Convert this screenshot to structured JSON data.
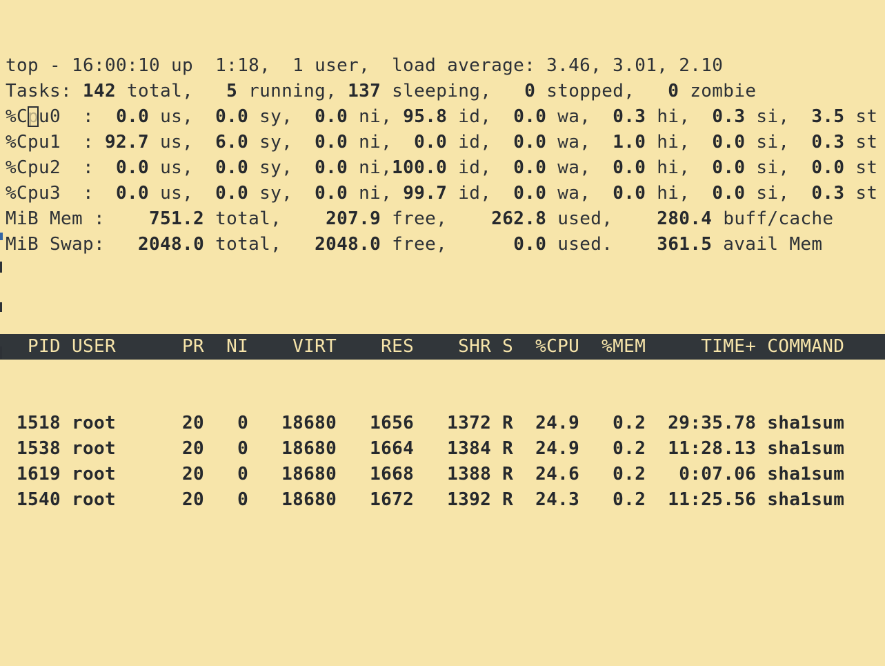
{
  "colors": {
    "background": "#f7e5aa",
    "foreground": "#2d3136",
    "table_header_bg": "#31363a",
    "table_header_fg": "#f7e5aa",
    "accent_blue": "#3465a4"
  },
  "summary": {
    "lines": [
      {
        "name": "uptime-line",
        "segments": [
          {
            "text": "top - 16:00:10 up  1:18,  1 user,  load average: 3.46, 3.01, 2.10",
            "bold": false
          }
        ]
      },
      {
        "name": "tasks-line",
        "segments": [
          {
            "text": "Tasks: ",
            "bold": false
          },
          {
            "text": "142",
            "bold": true
          },
          {
            "text": " total,   ",
            "bold": false
          },
          {
            "text": "5",
            "bold": true
          },
          {
            "text": " running, ",
            "bold": false
          },
          {
            "text": "137",
            "bold": true
          },
          {
            "text": " sleeping,   ",
            "bold": false
          },
          {
            "text": "0",
            "bold": true
          },
          {
            "text": " stopped,   ",
            "bold": false
          },
          {
            "text": "0",
            "bold": true
          },
          {
            "text": " zombie",
            "bold": false
          }
        ]
      },
      {
        "name": "cpu0-line",
        "segments": [
          {
            "text": "%C",
            "bold": false
          },
          {
            "text": "p",
            "bold": false,
            "cursor": true
          },
          {
            "text": "u0  :  ",
            "bold": false
          },
          {
            "text": "0.0",
            "bold": true
          },
          {
            "text": " us,  ",
            "bold": false
          },
          {
            "text": "0.0",
            "bold": true
          },
          {
            "text": " sy,  ",
            "bold": false
          },
          {
            "text": "0.0",
            "bold": true
          },
          {
            "text": " ni, ",
            "bold": false
          },
          {
            "text": "95.8",
            "bold": true
          },
          {
            "text": " id,  ",
            "bold": false
          },
          {
            "text": "0.0",
            "bold": true
          },
          {
            "text": " wa,  ",
            "bold": false
          },
          {
            "text": "0.3",
            "bold": true
          },
          {
            "text": " hi,  ",
            "bold": false
          },
          {
            "text": "0.3",
            "bold": true
          },
          {
            "text": " si,  ",
            "bold": false
          },
          {
            "text": "3.5",
            "bold": true
          },
          {
            "text": " st",
            "bold": false
          }
        ]
      },
      {
        "name": "cpu1-line",
        "segments": [
          {
            "text": "%Cpu1  : ",
            "bold": false
          },
          {
            "text": "92.7",
            "bold": true
          },
          {
            "text": " us,  ",
            "bold": false
          },
          {
            "text": "6.0",
            "bold": true
          },
          {
            "text": " sy,  ",
            "bold": false
          },
          {
            "text": "0.0",
            "bold": true
          },
          {
            "text": " ni,  ",
            "bold": false
          },
          {
            "text": "0.0",
            "bold": true
          },
          {
            "text": " id,  ",
            "bold": false
          },
          {
            "text": "0.0",
            "bold": true
          },
          {
            "text": " wa,  ",
            "bold": false
          },
          {
            "text": "1.0",
            "bold": true
          },
          {
            "text": " hi,  ",
            "bold": false
          },
          {
            "text": "0.0",
            "bold": true
          },
          {
            "text": " si,  ",
            "bold": false
          },
          {
            "text": "0.3",
            "bold": true
          },
          {
            "text": " st",
            "bold": false
          }
        ]
      },
      {
        "name": "cpu2-line",
        "segments": [
          {
            "text": "%Cpu2  :  ",
            "bold": false
          },
          {
            "text": "0.0",
            "bold": true
          },
          {
            "text": " us,  ",
            "bold": false
          },
          {
            "text": "0.0",
            "bold": true
          },
          {
            "text": " sy,  ",
            "bold": false
          },
          {
            "text": "0.0",
            "bold": true
          },
          {
            "text": " ni,",
            "bold": false
          },
          {
            "text": "100.0",
            "bold": true
          },
          {
            "text": " id,  ",
            "bold": false
          },
          {
            "text": "0.0",
            "bold": true
          },
          {
            "text": " wa,  ",
            "bold": false
          },
          {
            "text": "0.0",
            "bold": true
          },
          {
            "text": " hi,  ",
            "bold": false
          },
          {
            "text": "0.0",
            "bold": true
          },
          {
            "text": " si,  ",
            "bold": false
          },
          {
            "text": "0.0",
            "bold": true
          },
          {
            "text": " st",
            "bold": false
          }
        ]
      },
      {
        "name": "cpu3-line",
        "segments": [
          {
            "text": "%Cpu3  :  ",
            "bold": false
          },
          {
            "text": "0.0",
            "bold": true
          },
          {
            "text": " us,  ",
            "bold": false
          },
          {
            "text": "0.0",
            "bold": true
          },
          {
            "text": " sy,  ",
            "bold": false
          },
          {
            "text": "0.0",
            "bold": true
          },
          {
            "text": " ni, ",
            "bold": false
          },
          {
            "text": "99.7",
            "bold": true
          },
          {
            "text": " id,  ",
            "bold": false
          },
          {
            "text": "0.0",
            "bold": true
          },
          {
            "text": " wa,  ",
            "bold": false
          },
          {
            "text": "0.0",
            "bold": true
          },
          {
            "text": " hi,  ",
            "bold": false
          },
          {
            "text": "0.0",
            "bold": true
          },
          {
            "text": " si,  ",
            "bold": false
          },
          {
            "text": "0.3",
            "bold": true
          },
          {
            "text": " st",
            "bold": false
          }
        ]
      },
      {
        "name": "mem-line",
        "segments": [
          {
            "text": "MiB Mem :    ",
            "bold": false
          },
          {
            "text": "751.2",
            "bold": true
          },
          {
            "text": " total,    ",
            "bold": false
          },
          {
            "text": "207.9",
            "bold": true
          },
          {
            "text": " free,    ",
            "bold": false
          },
          {
            "text": "262.8",
            "bold": true
          },
          {
            "text": " used,    ",
            "bold": false
          },
          {
            "text": "280.4",
            "bold": true
          },
          {
            "text": " buff/cache",
            "bold": false
          }
        ]
      },
      {
        "name": "swap-line",
        "segments": [
          {
            "text": "MiB Swap:   ",
            "bold": false
          },
          {
            "text": "2048.0",
            "bold": true
          },
          {
            "text": " total,   ",
            "bold": false
          },
          {
            "text": "2048.0",
            "bold": true
          },
          {
            "text": " free,      ",
            "bold": false
          },
          {
            "text": "0.0",
            "bold": true
          },
          {
            "text": " used.    ",
            "bold": false
          },
          {
            "text": "361.5",
            "bold": true
          },
          {
            "text": " avail Mem",
            "bold": false
          }
        ]
      },
      {
        "name": "blank-line",
        "segments": [
          {
            "text": " ",
            "bold": false
          }
        ]
      }
    ]
  },
  "table": {
    "header": "  PID USER      PR  NI    VIRT    RES    SHR S  %CPU  %MEM     TIME+ COMMAND",
    "rows": [
      " 1518 root      20   0   18680   1656   1372 R  24.9   0.2  29:35.78 sha1sum",
      " 1538 root      20   0   18680   1664   1384 R  24.9   0.2  11:28.13 sha1sum",
      " 1619 root      20   0   18680   1668   1388 R  24.6   0.2   0:07.06 sha1sum",
      " 1540 root      20   0   18680   1672   1392 R  24.3   0.2  11:25.56 sha1sum"
    ]
  }
}
